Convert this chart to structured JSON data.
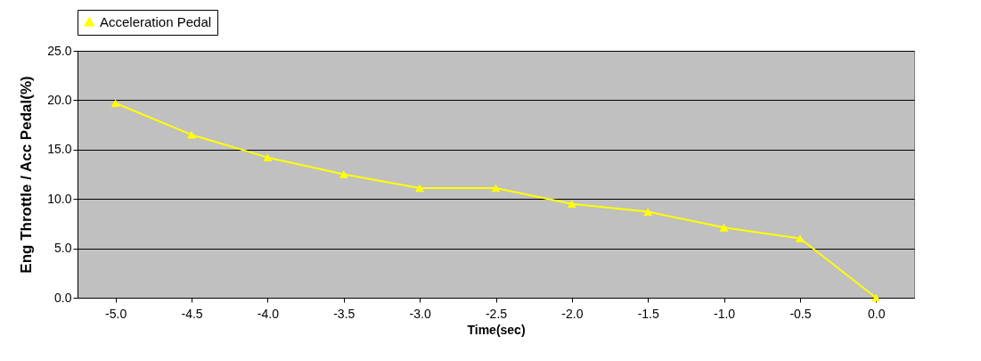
{
  "chart_data": {
    "type": "line",
    "xlabel": "Time(sec)",
    "ylabel": "Eng Throttle / Acc Pedal(%)",
    "categories": [
      "-5.0",
      "-4.5",
      "-4.0",
      "-3.5",
      "-3.0",
      "-2.5",
      "-2.0",
      "-1.5",
      "-1.0",
      "-0.5",
      "0.0"
    ],
    "series": [
      {
        "name": "Acceleration Pedal",
        "color": "#ffff00",
        "values": [
          19.7,
          16.5,
          14.2,
          12.5,
          11.1,
          11.1,
          9.5,
          8.7,
          7.1,
          6.0,
          0.0
        ]
      }
    ],
    "ylim": [
      0,
      25
    ],
    "yticks": [
      {
        "value": 0,
        "label": "0.0"
      },
      {
        "value": 5,
        "label": "5.0"
      },
      {
        "value": 10,
        "label": "10.0"
      },
      {
        "value": 15,
        "label": "15.0"
      },
      {
        "value": 20,
        "label": "20.0"
      },
      {
        "value": 25,
        "label": "25.0"
      }
    ],
    "grid": "y",
    "legend": "top",
    "marker": "triangle",
    "line_style": "solid"
  }
}
